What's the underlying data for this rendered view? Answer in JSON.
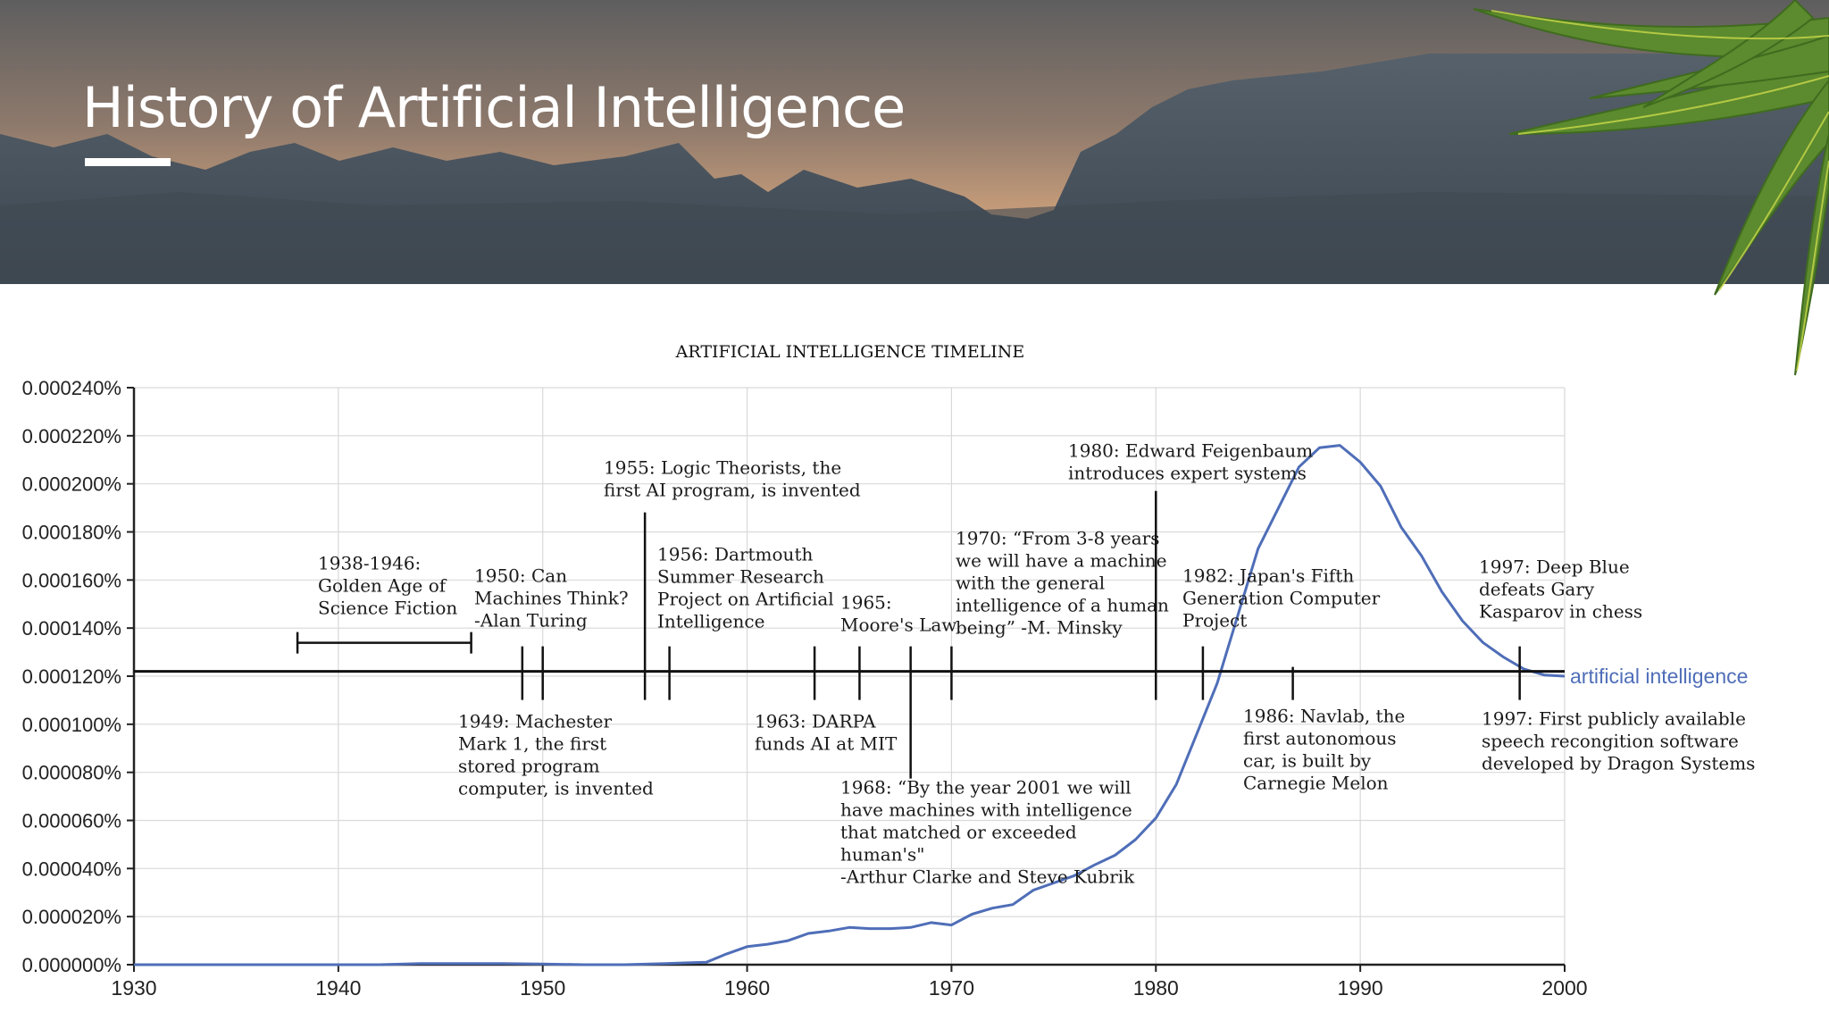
{
  "slide": {
    "title": "History of Artificial Intelligence"
  },
  "colors": {
    "series": "#4f6eb8",
    "axis": "#222222",
    "grid": "#d9d9d9",
    "timeline": "#111111",
    "banner_sky_top": "#6b6b6b",
    "banner_sky_glow": "#c9a07a",
    "banner_mountain": "#4a5560"
  },
  "chart_data": {
    "type": "line",
    "title": "ARTIFICIAL INTELLIGENCE TIMELINE",
    "xlabel": "",
    "ylabel": "",
    "xlim": [
      1930,
      2000
    ],
    "ylim": [
      0,
      0.00024
    ],
    "x_ticks": [
      "1930",
      "1940",
      "1950",
      "1960",
      "1970",
      "1980",
      "1990",
      "2000"
    ],
    "y_ticks": [
      "0.000000%",
      "0.000020%",
      "0.000040%",
      "0.000060%",
      "0.000080%",
      "0.000100%",
      "0.000120%",
      "0.000140%",
      "0.000160%",
      "0.000180%",
      "0.000200%",
      "0.000220%",
      "0.000240%"
    ],
    "grid": true,
    "legend": "right",
    "series": [
      {
        "name": "artificial intelligence",
        "x": [
          1930,
          1940,
          1942,
          1944,
          1946,
          1948,
          1950,
          1952,
          1954,
          1956,
          1958,
          1959,
          1960,
          1961,
          1962,
          1963,
          1964,
          1965,
          1966,
          1967,
          1968,
          1969,
          1970,
          1971,
          1972,
          1973,
          1974,
          1975,
          1976,
          1977,
          1978,
          1979,
          1980,
          1981,
          1982,
          1983,
          1984,
          1985,
          1986,
          1987,
          1988,
          1989,
          1990,
          1991,
          1992,
          1993,
          1994,
          1995,
          1996,
          1997,
          1998,
          1999,
          2000
        ],
        "y": [
          0,
          0,
          0,
          5e-07,
          5e-07,
          5e-07,
          3e-07,
          0,
          0,
          5e-07,
          1e-06,
          4.5e-06,
          7.5e-06,
          8.5e-06,
          1e-05,
          1.3e-05,
          1.4e-05,
          1.55e-05,
          1.5e-05,
          1.5e-05,
          1.55e-05,
          1.75e-05,
          1.65e-05,
          2.1e-05,
          2.35e-05,
          2.5e-05,
          3.1e-05,
          3.4e-05,
          3.7e-05,
          4.15e-05,
          4.55e-05,
          5.2e-05,
          6.1e-05,
          7.5e-05,
          9.6e-05,
          0.000117,
          0.000145,
          0.000173,
          0.00019,
          0.000207,
          0.000215,
          0.000216,
          0.000209,
          0.000199,
          0.000182,
          0.00017,
          0.000155,
          0.000143,
          0.000134,
          0.000128,
          0.000123,
          0.0001205,
          0.00012
        ]
      }
    ],
    "timeline_level": 0.000122,
    "bracket": {
      "from": 1938,
      "to": 1946.5
    },
    "events": [
      {
        "year": 1949,
        "side": "below",
        "lines": [
          "1949: Machester",
          "Mark 1, the first",
          "stored program",
          "computer, is invented"
        ]
      },
      {
        "year": 1950,
        "side": "above",
        "lines": [
          "1950: Can",
          "Machines Think?",
          "-Alan Turing"
        ],
        "italic_lines": [
          0,
          1
        ],
        "italic_from": [
          6,
          0
        ]
      },
      {
        "year": 1955,
        "side": "above",
        "lines": [
          "1955: Logic Theorists, the",
          "first AI program, is invented"
        ]
      },
      {
        "year": 1956.2,
        "side": "above",
        "lines": [
          "1956: Dartmouth",
          "Summer Research",
          "Project on Artificial",
          "Intelligence"
        ]
      },
      {
        "year": 1963.3,
        "side": "below",
        "lines": [
          "1963: DARPA",
          "funds AI at MIT"
        ]
      },
      {
        "year": 1965.5,
        "side": "above",
        "lines": [
          "1965:",
          "Moore's Law"
        ]
      },
      {
        "year": 1968,
        "side": "below",
        "lines": [
          "1968: “By the year 2001 we will",
          "have machines with intelligence",
          "that matched or exceeded",
          "human's\"",
          "-Arthur Clarke and Steve Kubrik"
        ]
      },
      {
        "year": 1970,
        "side": "above",
        "lines": [
          "1970: “From 3-8 years",
          "we will have a machine",
          "with the general",
          "intelligence of a human",
          "being” -M. Minsky"
        ]
      },
      {
        "year": 1980,
        "side": "above",
        "lines": [
          "1980: Edward Feigenbaum",
          "introduces expert systems"
        ]
      },
      {
        "year": 1982.3,
        "side": "above",
        "lines": [
          "1982: Japan's Fifth",
          "Generation Computer",
          "Project"
        ]
      },
      {
        "year": 1986.7,
        "side": "below",
        "lines": [
          "1986: Navlab, the",
          "first autonomous",
          "car, is built by",
          "Carnegie Melon"
        ]
      },
      {
        "year": 1997.8,
        "side": "above",
        "lines": [
          "1997: Deep Blue",
          "defeats Gary",
          "Kasparov in chess"
        ]
      },
      {
        "year": 1997.8,
        "side": "below",
        "lines": [
          "1997: First publicly available",
          "speech recongition software",
          "developed by Dragon Systems"
        ]
      }
    ],
    "bracket_label": [
      "1938-1946:",
      "Golden Age of",
      "Science Fiction"
    ]
  }
}
